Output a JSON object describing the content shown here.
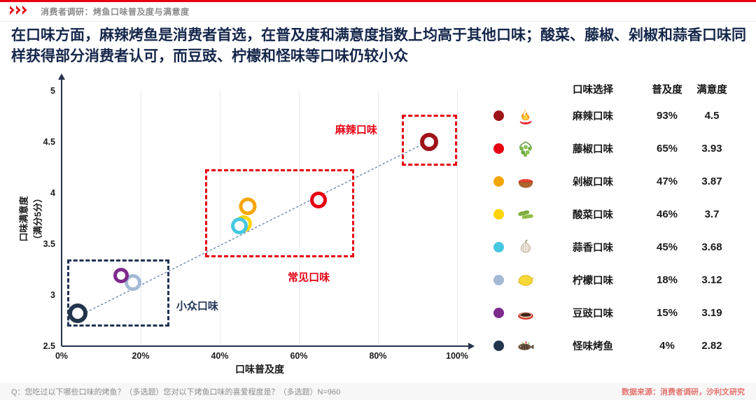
{
  "page": {
    "header": {
      "title": "消费者调研：烤鱼口味普及度与满意度"
    },
    "headline": "在口味方面，麻辣烤鱼是消费者首选，在普及度和满意度指数上均高于其他口味；酸菜、藤椒、剁椒和蒜香口味同样获得部分消费者认可，而豆豉、柠檬和怪味等口味仍较小众",
    "footer": {
      "question": "Q：您吃过以下哪些口味的烤鱼？（多选题）您对以下烤鱼口味的喜爱程度是？（多选题）N=960",
      "source": "数据来源：消费者调研，沙利文研究"
    }
  },
  "colors": {
    "accent_red": "#e60012",
    "title_navy": "#14264a",
    "axis": "#26334d",
    "source_text": "#e4736d"
  },
  "chart_data": {
    "type": "scatter",
    "title": "烤鱼口味普及度与满意度",
    "xlabel": "口味普及度",
    "ylabel": "口味满意度\n（满分5分）",
    "xlim": [
      0,
      100
    ],
    "ylim": [
      2.5,
      5
    ],
    "x_ticks": [
      "0%",
      "20%",
      "40%",
      "60%",
      "80%",
      "100%"
    ],
    "y_ticks": [
      "5",
      "4.5",
      "4",
      "3.5",
      "3",
      "2.5"
    ],
    "grid": "vertical",
    "legend_position": "right-table",
    "points": [
      {
        "name": "麻辣口味",
        "x": 93,
        "y": 4.5,
        "color": "#9e1418",
        "size": 26,
        "ring": 6
      },
      {
        "name": "藤椒口味",
        "x": 65,
        "y": 3.93,
        "color": "#e60012",
        "size": 24,
        "ring": 5.5
      },
      {
        "name": "剁椒口味",
        "x": 47,
        "y": 3.87,
        "color": "#f5a500",
        "size": 25,
        "ring": 5.5
      },
      {
        "name": "酸菜口味",
        "x": 46,
        "y": 3.7,
        "color": "#ffd400",
        "size": 24,
        "ring": 5.5
      },
      {
        "name": "蒜香口味",
        "x": 45,
        "y": 3.68,
        "color": "#45c8e0",
        "size": 24,
        "ring": 5.5
      },
      {
        "name": "柠檬口味",
        "x": 18,
        "y": 3.12,
        "color": "#a3b9d6",
        "size": 24,
        "ring": 5.5
      },
      {
        "name": "豆豉口味",
        "x": 15,
        "y": 3.19,
        "color": "#7d2a8c",
        "size": 22,
        "ring": 5
      },
      {
        "name": "怪味烤鱼",
        "x": 4,
        "y": 2.82,
        "color": "#22354c",
        "size": 28,
        "ring": 6.5
      }
    ],
    "trendline": {
      "x1": 1.5,
      "y1": 2.74,
      "x2": 95.5,
      "y2": 4.56
    },
    "groups": [
      {
        "id": "mala",
        "label": "麻辣口味",
        "color": "#e60012",
        "stroke": 3.5,
        "x1": 86,
        "x2": 100,
        "y1": 4.27,
        "y2": 4.77,
        "label_x": 74.5,
        "label_y": 4.62,
        "anchor": "center"
      },
      {
        "id": "changjian",
        "label": "常见口味",
        "color": "#e60012",
        "stroke": 3.5,
        "x1": 36.2,
        "x2": 73.9,
        "y1": 3.37,
        "y2": 4.23,
        "label_x": 62.5,
        "label_y": 3.18,
        "anchor": "center"
      },
      {
        "id": "xiaozhong",
        "label": "小众口味",
        "color": "#1f3354",
        "stroke": 3,
        "x1": 1.4,
        "x2": 27.3,
        "y1": 2.69,
        "y2": 3.35,
        "label_x": 29,
        "label_y": 2.9,
        "anchor": "left"
      }
    ]
  },
  "legend": {
    "headers": [
      "口味选择",
      "普及度",
      "满意度"
    ],
    "rows": [
      {
        "name": "麻辣口味",
        "popularity": "93%",
        "satisfaction": "4.5",
        "dot_color": "#9e1418",
        "icon": "flame-chili-icon"
      },
      {
        "name": "藤椒口味",
        "popularity": "65%",
        "satisfaction": "3.93",
        "dot_color": "#e60012",
        "icon": "green-peppercorn-icon"
      },
      {
        "name": "剁椒口味",
        "popularity": "47%",
        "satisfaction": "3.87",
        "dot_color": "#f5a500",
        "icon": "chopped-chili-icon"
      },
      {
        "name": "酸菜口味",
        "popularity": "46%",
        "satisfaction": "3.7",
        "dot_color": "#ffd400",
        "icon": "pickled-vegetable-icon"
      },
      {
        "name": "蒜香口味",
        "popularity": "45%",
        "satisfaction": "3.68",
        "dot_color": "#45c8e0",
        "icon": "garlic-icon"
      },
      {
        "name": "柠檬口味",
        "popularity": "18%",
        "satisfaction": "3.12",
        "dot_color": "#a3b9d6",
        "icon": "lemon-icon"
      },
      {
        "name": "豆豉口味",
        "popularity": "15%",
        "satisfaction": "3.19",
        "dot_color": "#7d2a8c",
        "icon": "black-bean-dish-icon"
      },
      {
        "name": "怪味烤鱼",
        "popularity": "4%",
        "satisfaction": "2.82",
        "dot_color": "#22354c",
        "icon": "grilled-fish-icon"
      }
    ]
  }
}
